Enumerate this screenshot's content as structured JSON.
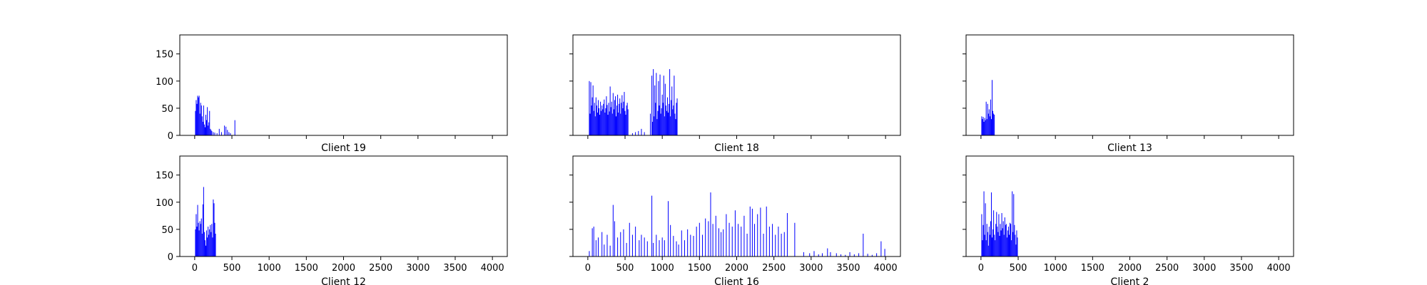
{
  "figure": {
    "background": "#ffffff"
  },
  "chart_data": [
    {
      "type": "bar",
      "title": "Client 19",
      "xlabel": "",
      "ylabel": "",
      "xlim": [
        -200,
        4200
      ],
      "ylim": [
        0,
        185
      ],
      "xticks": [
        0,
        500,
        1000,
        1500,
        2000,
        2500,
        3000,
        3500,
        4000
      ],
      "show_xtick_labels": false,
      "show_ytick_labels": true,
      "yticks": [
        0,
        50,
        100,
        150
      ],
      "grid": false,
      "series": [
        {
          "color": "#0000ff",
          "x": [
            10,
            20,
            30,
            40,
            50,
            60,
            70,
            80,
            90,
            100,
            110,
            120,
            130,
            140,
            150,
            160,
            170,
            180,
            190,
            200,
            210,
            220,
            230,
            250,
            270,
            300,
            330,
            360,
            400,
            420,
            440,
            460,
            480,
            540
          ],
          "values": [
            45,
            65,
            58,
            73,
            70,
            73,
            40,
            60,
            55,
            35,
            25,
            55,
            20,
            15,
            38,
            28,
            52,
            18,
            24,
            45,
            12,
            10,
            8,
            6,
            5,
            4,
            12,
            6,
            18,
            16,
            10,
            6,
            4,
            28
          ]
        }
      ]
    },
    {
      "type": "bar",
      "title": "Client 18",
      "xlabel": "",
      "ylabel": "",
      "xlim": [
        -200,
        4200
      ],
      "ylim": [
        0,
        185
      ],
      "xticks": [
        0,
        500,
        1000,
        1500,
        2000,
        2500,
        3000,
        3500,
        4000
      ],
      "show_xtick_labels": false,
      "show_ytick_labels": false,
      "yticks": [
        0,
        50,
        100,
        150
      ],
      "grid": false,
      "series": [
        {
          "color": "#0000ff",
          "x": [
            20,
            30,
            40,
            50,
            60,
            70,
            80,
            90,
            100,
            110,
            120,
            130,
            140,
            150,
            160,
            170,
            180,
            190,
            200,
            210,
            220,
            230,
            240,
            250,
            260,
            270,
            280,
            290,
            300,
            310,
            320,
            330,
            340,
            350,
            360,
            370,
            380,
            390,
            400,
            410,
            420,
            430,
            440,
            450,
            460,
            470,
            480,
            490,
            500,
            510,
            520,
            530,
            540,
            600,
            640,
            680,
            720,
            760,
            840,
            860,
            870,
            880,
            890,
            900,
            910,
            920,
            930,
            940,
            950,
            960,
            970,
            980,
            990,
            1000,
            1010,
            1020,
            1030,
            1040,
            1050,
            1060,
            1070,
            1080,
            1090,
            1100,
            1110,
            1120,
            1130,
            1140,
            1150,
            1160,
            1170,
            1180,
            1190,
            1200
          ],
          "values": [
            100,
            40,
            98,
            55,
            70,
            92,
            45,
            60,
            35,
            70,
            55,
            42,
            65,
            50,
            38,
            62,
            45,
            55,
            48,
            58,
            66,
            42,
            50,
            72,
            56,
            38,
            60,
            44,
            90,
            52,
            62,
            40,
            78,
            48,
            65,
            72,
            35,
            55,
            75,
            42,
            58,
            68,
            40,
            60,
            74,
            50,
            62,
            80,
            45,
            38,
            55,
            60,
            48,
            4,
            6,
            8,
            12,
            6,
            40,
            110,
            25,
            122,
            35,
            92,
            60,
            115,
            30,
            45,
            100,
            55,
            112,
            40,
            50,
            75,
            60,
            110,
            35,
            95,
            55,
            45,
            70,
            42,
            58,
            122,
            35,
            65,
            90,
            48,
            55,
            110,
            40,
            30,
            60,
            68
          ]
        }
      ]
    },
    {
      "type": "bar",
      "title": "Client 13",
      "xlabel": "",
      "ylabel": "",
      "xlim": [
        -200,
        4200
      ],
      "ylim": [
        0,
        185
      ],
      "xticks": [
        0,
        500,
        1000,
        1500,
        2000,
        2500,
        3000,
        3500,
        4000
      ],
      "show_xtick_labels": false,
      "show_ytick_labels": false,
      "yticks": [
        0,
        50,
        100,
        150
      ],
      "grid": false,
      "series": [
        {
          "color": "#0000ff",
          "x": [
            10,
            20,
            30,
            40,
            50,
            60,
            70,
            80,
            90,
            100,
            110,
            120,
            130,
            140,
            150,
            160,
            170,
            180
          ],
          "values": [
            35,
            30,
            34,
            25,
            32,
            28,
            62,
            30,
            58,
            40,
            48,
            35,
            66,
            30,
            102,
            45,
            40,
            38
          ]
        }
      ]
    },
    {
      "type": "bar",
      "title": "Client 12",
      "xlabel": "",
      "ylabel": "",
      "xlim": [
        -200,
        4200
      ],
      "ylim": [
        0,
        185
      ],
      "xticks": [
        0,
        500,
        1000,
        1500,
        2000,
        2500,
        3000,
        3500,
        4000
      ],
      "show_xtick_labels": true,
      "show_ytick_labels": true,
      "yticks": [
        0,
        50,
        100,
        150
      ],
      "grid": false,
      "series": [
        {
          "color": "#0000ff",
          "x": [
            10,
            20,
            30,
            40,
            50,
            60,
            70,
            80,
            90,
            100,
            110,
            120,
            130,
            140,
            150,
            160,
            170,
            180,
            190,
            200,
            210,
            220,
            230,
            240,
            250,
            260,
            270,
            280
          ],
          "values": [
            50,
            78,
            55,
            95,
            62,
            48,
            65,
            60,
            70,
            42,
            96,
            128,
            45,
            30,
            20,
            48,
            35,
            55,
            40,
            50,
            58,
            45,
            60,
            35,
            105,
            98,
            62,
            42
          ]
        }
      ]
    },
    {
      "type": "bar",
      "title": "Client 16",
      "xlabel": "",
      "ylabel": "",
      "xlim": [
        -200,
        4200
      ],
      "ylim": [
        0,
        185
      ],
      "xticks": [
        0,
        500,
        1000,
        1500,
        2000,
        2500,
        3000,
        3500,
        4000
      ],
      "show_xtick_labels": true,
      "show_ytick_labels": false,
      "yticks": [
        0,
        50,
        100,
        150
      ],
      "grid": false,
      "series": [
        {
          "color": "#0000ff",
          "x": [
            20,
            60,
            80,
            110,
            140,
            190,
            220,
            260,
            300,
            340,
            360,
            400,
            440,
            480,
            520,
            560,
            600,
            640,
            690,
            720,
            760,
            800,
            860,
            880,
            920,
            960,
            1000,
            1030,
            1080,
            1110,
            1150,
            1190,
            1220,
            1260,
            1300,
            1340,
            1380,
            1420,
            1460,
            1500,
            1540,
            1580,
            1620,
            1650,
            1680,
            1720,
            1760,
            1790,
            1820,
            1860,
            1900,
            1940,
            1980,
            2020,
            2060,
            2100,
            2140,
            2180,
            2210,
            2240,
            2280,
            2320,
            2360,
            2400,
            2440,
            2480,
            2520,
            2560,
            2600,
            2640,
            2680,
            2780,
            2900,
            2980,
            3040,
            3100,
            3150,
            3220,
            3260,
            3340,
            3400,
            3460,
            3520,
            3580,
            3640,
            3700,
            3760,
            3820,
            3880,
            3940,
            3990
          ],
          "values": [
            10,
            52,
            55,
            30,
            35,
            45,
            22,
            40,
            20,
            95,
            65,
            35,
            45,
            50,
            25,
            62,
            40,
            55,
            30,
            40,
            35,
            28,
            112,
            25,
            40,
            30,
            35,
            30,
            102,
            58,
            38,
            28,
            22,
            48,
            30,
            50,
            40,
            38,
            55,
            62,
            40,
            70,
            65,
            118,
            60,
            75,
            52,
            45,
            50,
            78,
            62,
            55,
            85,
            60,
            55,
            75,
            42,
            92,
            88,
            60,
            78,
            90,
            42,
            92,
            55,
            60,
            40,
            55,
            42,
            45,
            80,
            62,
            8,
            6,
            10,
            4,
            6,
            15,
            8,
            6,
            4,
            3,
            8,
            4,
            6,
            42,
            5,
            3,
            6,
            28,
            14
          ]
        }
      ]
    },
    {
      "type": "bar",
      "title": "Client 2",
      "xlabel": "",
      "ylabel": "",
      "xlim": [
        -200,
        4200
      ],
      "ylim": [
        0,
        185
      ],
      "xticks": [
        0,
        500,
        1000,
        1500,
        2000,
        2500,
        3000,
        3500,
        4000
      ],
      "show_xtick_labels": true,
      "show_ytick_labels": false,
      "yticks": [
        0,
        50,
        100,
        150
      ],
      "grid": false,
      "series": [
        {
          "color": "#0000ff",
          "x": [
            10,
            20,
            30,
            40,
            50,
            60,
            70,
            80,
            90,
            100,
            110,
            120,
            130,
            140,
            150,
            160,
            170,
            180,
            190,
            200,
            210,
            220,
            230,
            240,
            250,
            260,
            270,
            280,
            290,
            300,
            310,
            320,
            330,
            340,
            350,
            360,
            370,
            380,
            390,
            400,
            410,
            420,
            430,
            440,
            450,
            460,
            470,
            480,
            490
          ],
          "values": [
            78,
            30,
            58,
            120,
            40,
            98,
            30,
            60,
            45,
            20,
            55,
            40,
            65,
            118,
            35,
            50,
            85,
            40,
            30,
            60,
            82,
            55,
            45,
            78,
            38,
            60,
            48,
            80,
            52,
            65,
            40,
            72,
            58,
            60,
            35,
            48,
            55,
            40,
            62,
            60,
            30,
            120,
            45,
            115,
            58,
            40,
            22,
            48,
            35
          ]
        }
      ]
    }
  ]
}
